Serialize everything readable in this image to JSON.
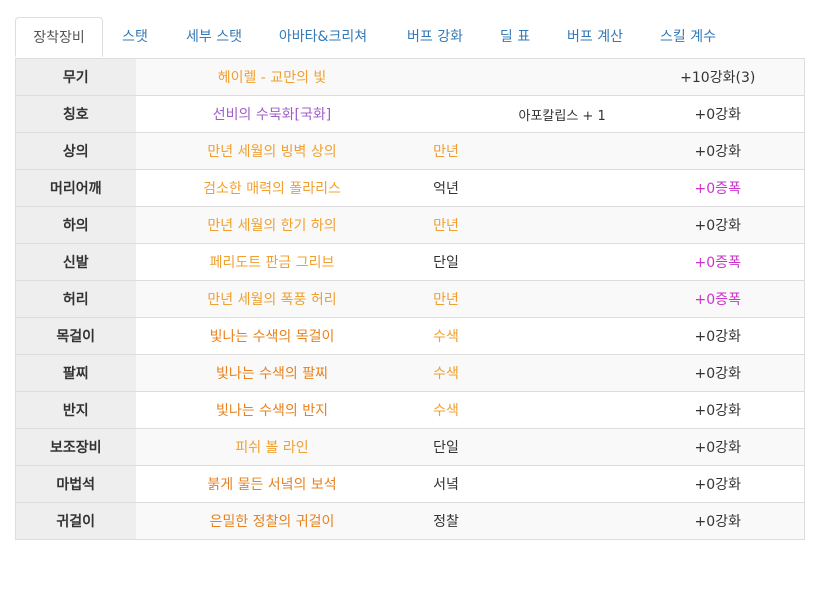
{
  "tabs": [
    {
      "label": "장착장비",
      "active": true
    },
    {
      "label": "스탯",
      "active": false
    },
    {
      "label": "세부 스탯",
      "active": false
    },
    {
      "label": "아바타&크리쳐",
      "active": false
    },
    {
      "label": "버프 강화",
      "active": false
    },
    {
      "label": "딜 표",
      "active": false
    },
    {
      "label": "버프 계산",
      "active": false
    },
    {
      "label": "스킬 계수",
      "active": false
    }
  ],
  "colors": {
    "legendary_orange": "#f0a030",
    "epic_orange": "#e8821e",
    "unique_purple": "#a05fc8",
    "amplify_magenta": "#cc33cc",
    "tab_link": "#337ab7"
  },
  "equipment": [
    {
      "slot": "무기",
      "item": "헤이렐 - 교만의 빛",
      "item_color": "orange",
      "enchant": "",
      "enchant_color": "",
      "title_option": "",
      "reinforce": "+10강화(3)",
      "reinforce_color": "dark"
    },
    {
      "slot": "칭호",
      "item": "선비의 수묵화[국화]",
      "item_color": "purple",
      "enchant": "",
      "enchant_color": "",
      "title_option": "아포칼립스 + 1",
      "reinforce": "+0강화",
      "reinforce_color": "dark"
    },
    {
      "slot": "상의",
      "item": "만년 세월의 빙벽 상의",
      "item_color": "orange",
      "enchant": "만년",
      "enchant_color": "orange",
      "title_option": "",
      "reinforce": "+0강화",
      "reinforce_color": "dark"
    },
    {
      "slot": "머리어깨",
      "item": "검소한 매력의 폴라리스",
      "item_color": "orange",
      "enchant": "억년",
      "enchant_color": "dark",
      "title_option": "",
      "reinforce": "+0증폭",
      "reinforce_color": "magenta"
    },
    {
      "slot": "하의",
      "item": "만년 세월의 한기 하의",
      "item_color": "orange",
      "enchant": "만년",
      "enchant_color": "orange",
      "title_option": "",
      "reinforce": "+0강화",
      "reinforce_color": "dark"
    },
    {
      "slot": "신발",
      "item": "페리도트 판금 그리브",
      "item_color": "orange",
      "enchant": "단일",
      "enchant_color": "dark",
      "title_option": "",
      "reinforce": "+0증폭",
      "reinforce_color": "magenta"
    },
    {
      "slot": "허리",
      "item": "만년 세월의 폭풍 허리",
      "item_color": "orange",
      "enchant": "만년",
      "enchant_color": "orange",
      "title_option": "",
      "reinforce": "+0증폭",
      "reinforce_color": "magenta"
    },
    {
      "slot": "목걸이",
      "item": "빛나는 수색의 목걸이",
      "item_color": "orange2",
      "enchant": "수색",
      "enchant_color": "orange",
      "title_option": "",
      "reinforce": "+0강화",
      "reinforce_color": "dark"
    },
    {
      "slot": "팔찌",
      "item": "빛나는 수색의 팔찌",
      "item_color": "orange2",
      "enchant": "수색",
      "enchant_color": "orange",
      "title_option": "",
      "reinforce": "+0강화",
      "reinforce_color": "dark"
    },
    {
      "slot": "반지",
      "item": "빛나는 수색의 반지",
      "item_color": "orange2",
      "enchant": "수색",
      "enchant_color": "orange",
      "title_option": "",
      "reinforce": "+0강화",
      "reinforce_color": "dark"
    },
    {
      "slot": "보조장비",
      "item": "피쉬 볼 라인",
      "item_color": "orange",
      "enchant": "단일",
      "enchant_color": "dark",
      "title_option": "",
      "reinforce": "+0강화",
      "reinforce_color": "dark"
    },
    {
      "slot": "마법석",
      "item": "붉게 물든 서녘의 보석",
      "item_color": "orange2",
      "enchant": "서녘",
      "enchant_color": "dark",
      "title_option": "",
      "reinforce": "+0강화",
      "reinforce_color": "dark"
    },
    {
      "slot": "귀걸이",
      "item": "은밀한 정찰의 귀걸이",
      "item_color": "orange2",
      "enchant": "정찰",
      "enchant_color": "dark",
      "title_option": "",
      "reinforce": "+0강화",
      "reinforce_color": "dark"
    }
  ]
}
